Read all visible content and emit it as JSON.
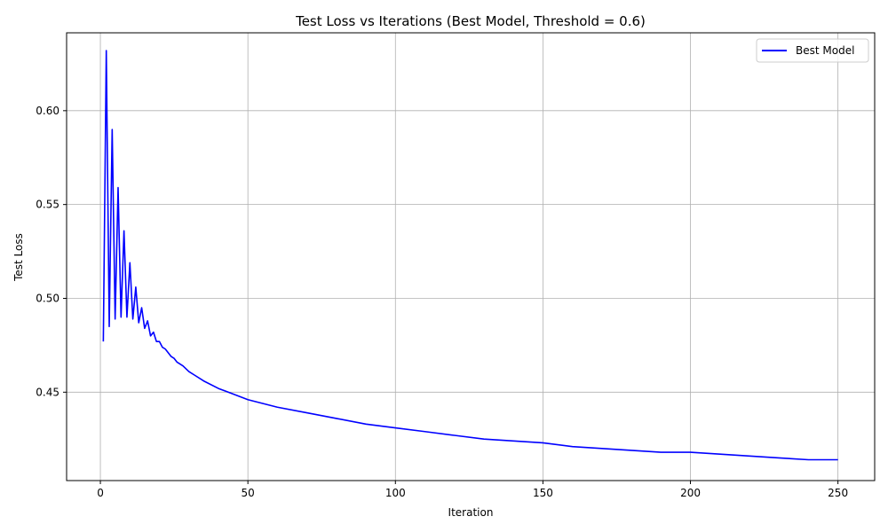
{
  "chart_data": {
    "type": "line",
    "title": "Test Loss vs Iterations (Best Model, Threshold = 0.6)",
    "xlabel": "Iteration",
    "ylabel": "Test Loss",
    "xlim": [
      -11.45,
      262.45
    ],
    "ylim": [
      0.4029,
      0.6415
    ],
    "xticks": [
      0,
      50,
      100,
      150,
      200,
      250
    ],
    "xtick_labels": [
      "0",
      "50",
      "100",
      "150",
      "200",
      "250"
    ],
    "yticks": [
      0.45,
      0.5,
      0.55,
      0.6
    ],
    "ytick_labels": [
      "0.45",
      "0.50",
      "0.55",
      "0.60"
    ],
    "grid": true,
    "legend_position": "upper right",
    "series": [
      {
        "name": "Best Model",
        "color": "#0000ff",
        "x": [
          1,
          2,
          3,
          4,
          5,
          6,
          7,
          8,
          9,
          10,
          11,
          12,
          13,
          14,
          15,
          16,
          17,
          18,
          19,
          20,
          21,
          22,
          23,
          24,
          25,
          26,
          28,
          30,
          32,
          35,
          40,
          45,
          50,
          60,
          70,
          80,
          90,
          100,
          110,
          120,
          130,
          140,
          150,
          160,
          170,
          180,
          190,
          200,
          210,
          220,
          230,
          240,
          250
        ],
        "y": [
          0.477,
          0.632,
          0.485,
          0.59,
          0.489,
          0.559,
          0.49,
          0.536,
          0.49,
          0.519,
          0.489,
          0.506,
          0.487,
          0.495,
          0.484,
          0.488,
          0.48,
          0.482,
          0.477,
          0.477,
          0.474,
          0.473,
          0.471,
          0.469,
          0.468,
          0.466,
          0.464,
          0.461,
          0.459,
          0.456,
          0.452,
          0.449,
          0.446,
          0.442,
          0.439,
          0.436,
          0.433,
          0.431,
          0.429,
          0.427,
          0.425,
          0.424,
          0.423,
          0.421,
          0.42,
          0.419,
          0.418,
          0.418,
          0.417,
          0.416,
          0.415,
          0.414,
          0.414
        ]
      }
    ]
  }
}
